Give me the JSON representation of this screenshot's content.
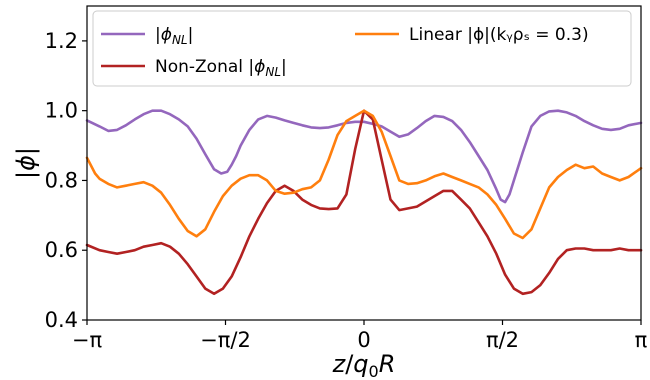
{
  "chart_data": {
    "type": "line",
    "xlabel": "z/q₀R",
    "ylabel": "|ϕ|",
    "xlim": [
      -3.14159,
      3.14159
    ],
    "ylim": [
      0.4,
      1.3
    ],
    "x_ticks": [
      {
        "value": -3.14159,
        "label": "−π"
      },
      {
        "value": -1.5708,
        "label": "−π/2"
      },
      {
        "value": 0,
        "label": "0"
      },
      {
        "value": 1.5708,
        "label": "π/2"
      },
      {
        "value": 3.14159,
        "label": "π"
      }
    ],
    "y_ticks": [
      {
        "value": 0.4,
        "label": "0.4"
      },
      {
        "value": 0.6,
        "label": "0.6"
      },
      {
        "value": 0.8,
        "label": "0.8"
      },
      {
        "value": 1.0,
        "label": "1.0"
      },
      {
        "value": 1.2,
        "label": "1.2"
      }
    ],
    "grid": false,
    "legend": {
      "placement": "top",
      "columns": 2,
      "entries": [
        {
          "series": 0,
          "label": "|ϕNL|"
        },
        {
          "series": 1,
          "label": "Non-Zonal |ϕNL|"
        },
        {
          "series": 2,
          "label": "Linear |ϕ|(kᵧρₛ = 0.3)"
        }
      ]
    },
    "series": [
      {
        "name": "|ϕNL|",
        "color": "#9467bd",
        "x": [
          -3.142,
          -3.0,
          -2.9,
          -2.8,
          -2.7,
          -2.6,
          -2.5,
          -2.4,
          -2.3,
          -2.2,
          -2.1,
          -2.0,
          -1.9,
          -1.8,
          -1.7,
          -1.62,
          -1.55,
          -1.5,
          -1.45,
          -1.4,
          -1.3,
          -1.2,
          -1.1,
          -1.0,
          -0.9,
          -0.8,
          -0.7,
          -0.6,
          -0.5,
          -0.4,
          -0.3,
          -0.2,
          -0.1,
          0.0,
          0.1,
          0.2,
          0.3,
          0.4,
          0.5,
          0.6,
          0.7,
          0.8,
          0.9,
          1.0,
          1.1,
          1.2,
          1.3,
          1.4,
          1.5,
          1.55,
          1.6,
          1.65,
          1.7,
          1.8,
          1.9,
          2.0,
          2.1,
          2.2,
          2.3,
          2.4,
          2.5,
          2.6,
          2.7,
          2.8,
          2.9,
          3.0,
          3.142
        ],
        "y": [
          0.972,
          0.955,
          0.942,
          0.945,
          0.958,
          0.975,
          0.99,
          1.0,
          1.0,
          0.99,
          0.975,
          0.955,
          0.92,
          0.875,
          0.832,
          0.82,
          0.825,
          0.845,
          0.87,
          0.9,
          0.945,
          0.975,
          0.985,
          0.98,
          0.972,
          0.965,
          0.958,
          0.952,
          0.95,
          0.952,
          0.958,
          0.965,
          0.968,
          0.968,
          0.962,
          0.955,
          0.94,
          0.925,
          0.932,
          0.95,
          0.97,
          0.985,
          0.982,
          0.97,
          0.945,
          0.91,
          0.87,
          0.83,
          0.775,
          0.745,
          0.738,
          0.76,
          0.8,
          0.88,
          0.955,
          0.985,
          0.998,
          1.0,
          0.995,
          0.985,
          0.97,
          0.958,
          0.948,
          0.945,
          0.948,
          0.958,
          0.965
        ]
      },
      {
        "name": "Non-Zonal |ϕNL|",
        "color": "#b22222",
        "x": [
          -3.142,
          -3.0,
          -2.9,
          -2.8,
          -2.7,
          -2.6,
          -2.5,
          -2.4,
          -2.3,
          -2.2,
          -2.1,
          -2.0,
          -1.9,
          -1.8,
          -1.7,
          -1.6,
          -1.5,
          -1.4,
          -1.3,
          -1.2,
          -1.1,
          -1.0,
          -0.9,
          -0.8,
          -0.7,
          -0.6,
          -0.5,
          -0.4,
          -0.3,
          -0.2,
          -0.1,
          0.0,
          0.1,
          0.2,
          0.3,
          0.4,
          0.5,
          0.6,
          0.7,
          0.8,
          0.9,
          1.0,
          1.1,
          1.2,
          1.3,
          1.4,
          1.5,
          1.6,
          1.7,
          1.8,
          1.9,
          2.0,
          2.1,
          2.2,
          2.3,
          2.4,
          2.5,
          2.6,
          2.7,
          2.8,
          2.9,
          3.0,
          3.142
        ],
        "y": [
          0.615,
          0.6,
          0.595,
          0.59,
          0.595,
          0.6,
          0.61,
          0.615,
          0.62,
          0.61,
          0.59,
          0.56,
          0.525,
          0.49,
          0.475,
          0.49,
          0.525,
          0.58,
          0.64,
          0.69,
          0.735,
          0.77,
          0.785,
          0.77,
          0.745,
          0.73,
          0.72,
          0.718,
          0.72,
          0.76,
          0.89,
          1.0,
          0.975,
          0.86,
          0.745,
          0.715,
          0.72,
          0.725,
          0.74,
          0.755,
          0.77,
          0.77,
          0.745,
          0.72,
          0.68,
          0.64,
          0.59,
          0.53,
          0.49,
          0.475,
          0.48,
          0.5,
          0.535,
          0.575,
          0.6,
          0.605,
          0.605,
          0.6,
          0.6,
          0.6,
          0.605,
          0.6,
          0.6
        ]
      },
      {
        "name": "Linear |ϕ|(kᵧρₛ = 0.3)",
        "color": "#ff7f0e",
        "x": [
          -3.142,
          -3.05,
          -3.0,
          -2.9,
          -2.8,
          -2.7,
          -2.6,
          -2.5,
          -2.4,
          -2.3,
          -2.2,
          -2.1,
          -2.0,
          -1.9,
          -1.8,
          -1.7,
          -1.6,
          -1.5,
          -1.4,
          -1.3,
          -1.2,
          -1.1,
          -1.0,
          -0.9,
          -0.8,
          -0.7,
          -0.6,
          -0.5,
          -0.4,
          -0.3,
          -0.2,
          -0.1,
          0.0,
          0.1,
          0.2,
          0.3,
          0.4,
          0.5,
          0.6,
          0.7,
          0.8,
          0.9,
          1.0,
          1.1,
          1.2,
          1.3,
          1.4,
          1.5,
          1.6,
          1.7,
          1.8,
          1.9,
          2.0,
          2.1,
          2.2,
          2.3,
          2.4,
          2.5,
          2.6,
          2.7,
          2.8,
          2.9,
          3.0,
          3.142
        ],
        "y": [
          0.865,
          0.82,
          0.805,
          0.79,
          0.78,
          0.785,
          0.79,
          0.795,
          0.785,
          0.765,
          0.73,
          0.69,
          0.655,
          0.64,
          0.66,
          0.71,
          0.755,
          0.785,
          0.805,
          0.815,
          0.815,
          0.8,
          0.77,
          0.762,
          0.765,
          0.775,
          0.78,
          0.8,
          0.86,
          0.93,
          0.97,
          0.985,
          1.0,
          0.985,
          0.94,
          0.87,
          0.8,
          0.79,
          0.792,
          0.8,
          0.812,
          0.82,
          0.81,
          0.8,
          0.79,
          0.78,
          0.76,
          0.73,
          0.69,
          0.648,
          0.635,
          0.66,
          0.72,
          0.78,
          0.81,
          0.83,
          0.845,
          0.835,
          0.84,
          0.82,
          0.81,
          0.8,
          0.81,
          0.835
        ]
      }
    ]
  }
}
